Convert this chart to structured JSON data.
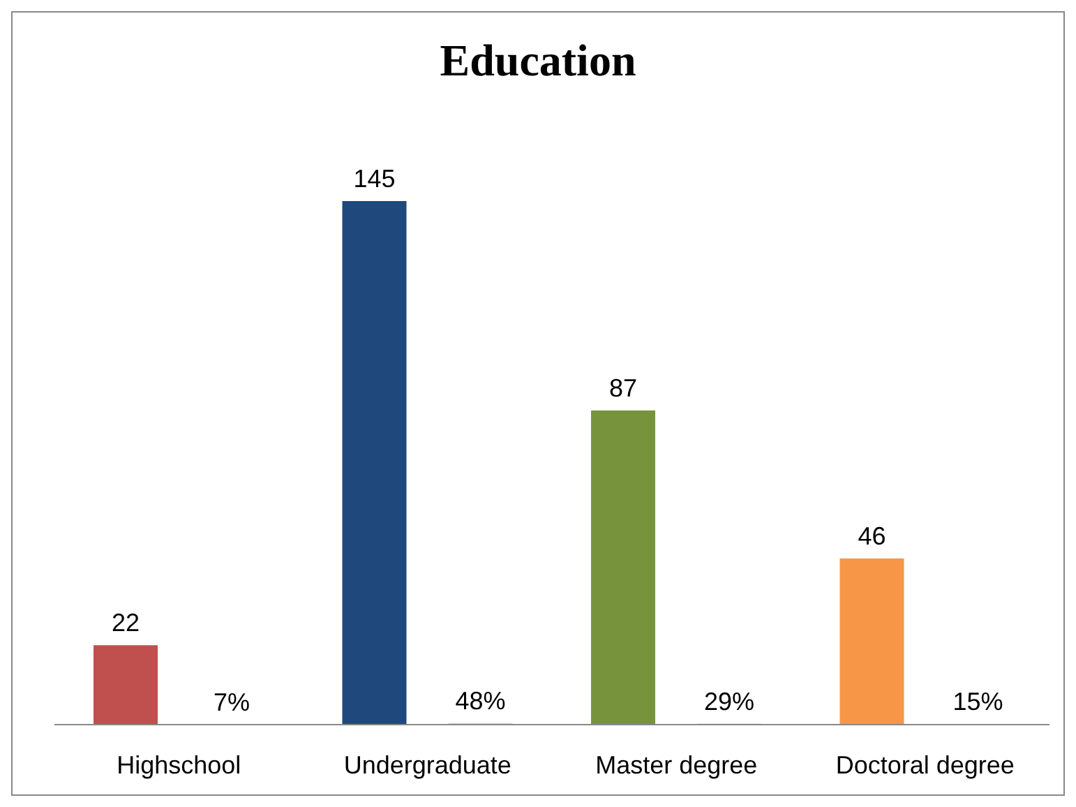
{
  "chart_data": {
    "type": "bar",
    "title": "Education",
    "categories": [
      "Highschool",
      "Undergraduate",
      "Master degree",
      "Doctoral degree"
    ],
    "series": [
      {
        "colors": [
          "#c0504d",
          "#1f497d",
          "#77933c",
          "#f79646"
        ],
        "values": [
          22,
          145,
          87,
          46
        ]
      },
      {
        "color": "#d9d9d9",
        "values": [
          0.07,
          0.48,
          0.29,
          0.15
        ],
        "value_labels": [
          "7%",
          "48%",
          "29%",
          "15%"
        ]
      }
    ],
    "data_labels": true
  }
}
